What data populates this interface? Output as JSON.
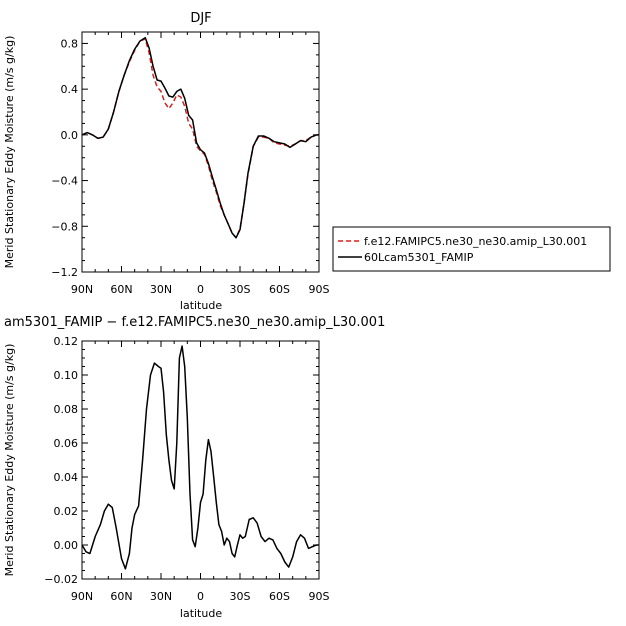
{
  "chart_data": [
    {
      "type": "line",
      "title": "DJF",
      "xlabel": "latitude",
      "ylabel": "Merid Stationary Eddy Moisture (m/s g/kg)",
      "xlim": [
        90,
        -90
      ],
      "ylim": [
        -1.2,
        0.9
      ],
      "xticks": [
        {
          "value": 90,
          "label": "90N"
        },
        {
          "value": 60,
          "label": "60N"
        },
        {
          "value": 30,
          "label": "30N"
        },
        {
          "value": 0,
          "label": "0"
        },
        {
          "value": -30,
          "label": "30S"
        },
        {
          "value": -60,
          "label": "60S"
        },
        {
          "value": -90,
          "label": "90S"
        }
      ],
      "yticks": [
        {
          "value": 0.8,
          "label": "0.8"
        },
        {
          "value": 0.4,
          "label": "0.4"
        },
        {
          "value": 0.0,
          "label": "0.0"
        },
        {
          "value": -0.4,
          "label": "−0.4"
        },
        {
          "value": -0.8,
          "label": "−0.8"
        },
        {
          "value": -1.2,
          "label": "−1.2"
        }
      ],
      "legend_position": "outside-right",
      "series": [
        {
          "name": "f.e12.FAMIPC5.ne30_ne30.amip_L30.001",
          "color": "#d62020",
          "dash": "dashed",
          "x": [
            90,
            86,
            82,
            78,
            74,
            70,
            66,
            62,
            58,
            54,
            50,
            46,
            42,
            39,
            36,
            33,
            30,
            27,
            24,
            21,
            18,
            15,
            12,
            9,
            6,
            3,
            0,
            -3,
            -6,
            -9,
            -12,
            -15,
            -18,
            -21,
            -24,
            -27,
            -30,
            -33,
            -36,
            -40,
            -44,
            -48,
            -52,
            -56,
            -60,
            -64,
            -68,
            -72,
            -76,
            -80,
            -84,
            -88,
            -90
          ],
          "y": [
            0.0,
            0.02,
            0.0,
            -0.03,
            -0.02,
            0.05,
            0.2,
            0.38,
            0.52,
            0.64,
            0.74,
            0.82,
            0.84,
            0.72,
            0.52,
            0.42,
            0.38,
            0.28,
            0.23,
            0.28,
            0.35,
            0.33,
            0.25,
            0.1,
            0.05,
            -0.1,
            -0.14,
            -0.17,
            -0.27,
            -0.4,
            -0.5,
            -0.62,
            -0.7,
            -0.78,
            -0.86,
            -0.9,
            -0.82,
            -0.6,
            -0.35,
            -0.1,
            -0.02,
            -0.02,
            -0.03,
            -0.07,
            -0.08,
            -0.09,
            -0.1,
            -0.08,
            -0.05,
            -0.05,
            -0.02,
            0.0,
            0.0
          ]
        },
        {
          "name": "60Lcam5301_FAMIP",
          "color": "#000000",
          "dash": "solid",
          "x": [
            90,
            86,
            82,
            78,
            74,
            70,
            66,
            62,
            58,
            54,
            50,
            46,
            42,
            39,
            36,
            33,
            30,
            27,
            24,
            21,
            18,
            15,
            12,
            9,
            6,
            3,
            0,
            -3,
            -6,
            -9,
            -12,
            -15,
            -18,
            -21,
            -24,
            -27,
            -30,
            -33,
            -36,
            -40,
            -44,
            -48,
            -52,
            -56,
            -60,
            -64,
            -68,
            -72,
            -76,
            -80,
            -84,
            -88,
            -90
          ],
          "y": [
            0.0,
            0.02,
            0.0,
            -0.03,
            -0.02,
            0.05,
            0.2,
            0.38,
            0.52,
            0.65,
            0.75,
            0.82,
            0.85,
            0.76,
            0.6,
            0.48,
            0.47,
            0.41,
            0.34,
            0.33,
            0.38,
            0.4,
            0.32,
            0.17,
            0.13,
            -0.07,
            -0.13,
            -0.16,
            -0.25,
            -0.37,
            -0.48,
            -0.6,
            -0.7,
            -0.78,
            -0.86,
            -0.9,
            -0.83,
            -0.6,
            -0.34,
            -0.1,
            -0.01,
            -0.01,
            -0.03,
            -0.06,
            -0.07,
            -0.08,
            -0.11,
            -0.08,
            -0.05,
            -0.06,
            -0.02,
            0.0,
            0.0
          ]
        }
      ]
    },
    {
      "type": "line",
      "title": "am5301_FAMIP − f.e12.FAMIPC5.ne30_ne30.amip_L30.001",
      "xlabel": "latitude",
      "ylabel": "Merid Stationary Eddy Moisture (m/s g/kg)",
      "xlim": [
        90,
        -90
      ],
      "ylim": [
        -0.02,
        0.12
      ],
      "xticks": [
        {
          "value": 90,
          "label": "90N"
        },
        {
          "value": 60,
          "label": "60N"
        },
        {
          "value": 30,
          "label": "30N"
        },
        {
          "value": 0,
          "label": "0"
        },
        {
          "value": -30,
          "label": "30S"
        },
        {
          "value": -60,
          "label": "60S"
        },
        {
          "value": -90,
          "label": "90S"
        }
      ],
      "yticks": [
        {
          "value": 0.12,
          "label": "0.12"
        },
        {
          "value": 0.1,
          "label": "0.10"
        },
        {
          "value": 0.08,
          "label": "0.08"
        },
        {
          "value": 0.06,
          "label": "0.06"
        },
        {
          "value": 0.04,
          "label": "0.04"
        },
        {
          "value": 0.02,
          "label": "0.02"
        },
        {
          "value": 0.0,
          "label": "0.00"
        },
        {
          "value": -0.02,
          "label": "−0.02"
        }
      ],
      "series": [
        {
          "color": "#000000",
          "x": [
            90,
            87,
            84,
            80,
            76,
            73,
            70,
            67,
            64,
            60,
            57,
            54,
            52,
            50,
            47,
            44,
            41,
            38,
            35,
            32,
            30,
            28,
            26,
            24,
            22,
            20,
            18,
            16,
            14,
            12,
            10,
            8,
            6,
            4,
            2,
            0,
            -2,
            -4,
            -6,
            -8,
            -10,
            -12,
            -14,
            -16,
            -18,
            -20,
            -22,
            -24,
            -26,
            -28,
            -30,
            -32,
            -34,
            -37,
            -40,
            -43,
            -46,
            -49,
            -52,
            -55,
            -58,
            -61,
            -64,
            -67,
            -70,
            -73,
            -76,
            -79,
            -82,
            -85,
            -88,
            -90
          ],
          "y": [
            0.0,
            -0.004,
            -0.005,
            0.005,
            0.012,
            0.02,
            0.024,
            0.022,
            0.01,
            -0.008,
            -0.014,
            -0.005,
            0.01,
            0.018,
            0.023,
            0.05,
            0.08,
            0.1,
            0.107,
            0.105,
            0.104,
            0.09,
            0.065,
            0.05,
            0.038,
            0.033,
            0.06,
            0.11,
            0.117,
            0.105,
            0.075,
            0.03,
            0.003,
            -0.001,
            0.01,
            0.025,
            0.03,
            0.05,
            0.062,
            0.055,
            0.04,
            0.025,
            0.012,
            0.008,
            0.0,
            0.004,
            0.002,
            -0.005,
            -0.007,
            0.0,
            0.006,
            0.004,
            0.005,
            0.015,
            0.016,
            0.013,
            0.005,
            0.002,
            0.004,
            0.003,
            -0.002,
            -0.005,
            -0.01,
            -0.013,
            -0.007,
            0.002,
            0.006,
            0.004,
            -0.002,
            -0.001,
            0.0,
            0.0
          ]
        }
      ]
    }
  ]
}
